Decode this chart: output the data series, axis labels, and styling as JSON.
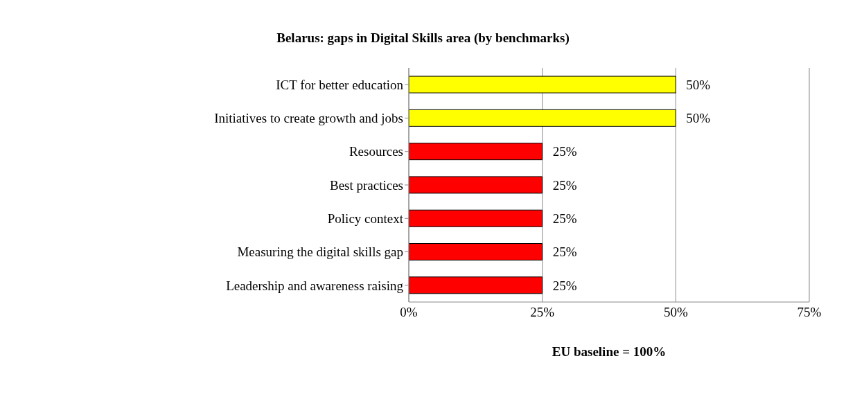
{
  "chart_data": {
    "type": "bar",
    "orientation": "horizontal",
    "title": "Belarus: gaps in Digital Skills area (by benchmarks)",
    "xlabel": "EU baseline = 100%",
    "categories": [
      "ICT for better education",
      "Initiatives to create growth and jobs",
      "Resources",
      "Best practices",
      "Policy context",
      "Measuring the digital skills gap",
      "Leadership and awareness raising"
    ],
    "values": [
      50,
      50,
      25,
      25,
      25,
      25,
      25
    ],
    "colors": [
      "#ffff00",
      "#ffff00",
      "#ff0000",
      "#ff0000",
      "#ff0000",
      "#ff0000",
      "#ff0000"
    ],
    "value_labels": [
      "50%",
      "50%",
      "25%",
      "25%",
      "25%",
      "25%",
      "25%"
    ],
    "xlim": [
      0,
      75
    ],
    "xticks": [
      {
        "value": 0,
        "label": "0%"
      },
      {
        "value": 25,
        "label": "25%"
      },
      {
        "value": 50,
        "label": "50%"
      },
      {
        "value": 75,
        "label": "75%"
      }
    ],
    "grid": "x",
    "legend": false
  }
}
